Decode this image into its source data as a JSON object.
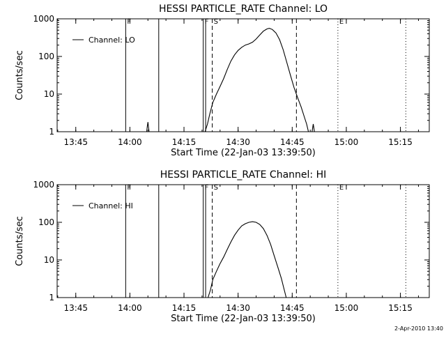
{
  "footer": {
    "date_stamp": "2-Apr-2010 13:40"
  },
  "chart_data": [
    {
      "type": "line",
      "title": "HESSI PARTICLE_RATE Channel: LO",
      "xlabel": "Start Time (22-Jan-03 13:39:50)",
      "ylabel": "Counts/sec",
      "y_scale": "log",
      "ylim": [
        1,
        1000
      ],
      "xlim": [
        "13:39:50",
        "15:23:00"
      ],
      "x_ticks": [
        "13:45",
        "14:00",
        "14:15",
        "14:30",
        "14:45",
        "15:00",
        "15:15"
      ],
      "y_ticks": [
        "1",
        "10",
        "100",
        "1000"
      ],
      "legend": {
        "label": "Channel: LO",
        "position": "top-left"
      },
      "series": [
        {
          "name": "Channel: LO",
          "color": "#000000",
          "segments": [
            [
              [
                "14:04:40",
                1.0
              ],
              [
                "14:04:50",
                1.4
              ],
              [
                "14:05:00",
                1.8
              ],
              [
                "14:05:10",
                1.3
              ],
              [
                "14:05:20",
                1.0
              ]
            ],
            [
              [
                "14:20:50",
                1.0
              ],
              [
                "14:21:30",
                1.6
              ],
              [
                "14:22:10",
                3.0
              ],
              [
                "14:23:00",
                6.0
              ],
              [
                "14:24:00",
                10.0
              ],
              [
                "14:25:00",
                16.0
              ],
              [
                "14:26:00",
                26.0
              ],
              [
                "14:27:00",
                45.0
              ],
              [
                "14:28:00",
                75.0
              ],
              [
                "14:29:00",
                110.0
              ],
              [
                "14:30:00",
                145.0
              ],
              [
                "14:31:00",
                175.0
              ],
              [
                "14:32:00",
                200.0
              ],
              [
                "14:33:00",
                215.0
              ],
              [
                "14:34:00",
                240.0
              ],
              [
                "14:35:00",
                290.0
              ],
              [
                "14:36:00",
                370.0
              ],
              [
                "14:37:00",
                470.0
              ],
              [
                "14:38:00",
                540.0
              ],
              [
                "14:38:40",
                560.0
              ],
              [
                "14:39:30",
                520.0
              ],
              [
                "14:40:30",
                420.0
              ],
              [
                "14:41:30",
                280.0
              ],
              [
                "14:42:30",
                150.0
              ],
              [
                "14:43:30",
                70.0
              ],
              [
                "14:44:30",
                32.0
              ],
              [
                "14:45:30",
                15.0
              ],
              [
                "14:46:30",
                8.0
              ],
              [
                "14:47:30",
                4.5
              ],
              [
                "14:48:20",
                2.5
              ],
              [
                "14:49:00",
                1.6
              ],
              [
                "14:49:30",
                1.0
              ]
            ],
            [
              [
                "14:50:30",
                1.0
              ],
              [
                "14:50:50",
                1.6
              ],
              [
                "14:51:10",
                1.0
              ]
            ]
          ]
        }
      ],
      "markers": [
        {
          "time": "13:58:50",
          "label": "F",
          "style": "solid"
        },
        {
          "time": "14:08:00",
          "label": "",
          "style": "solid"
        },
        {
          "time": "14:20:20",
          "label": "F",
          "style": "solid"
        },
        {
          "time": "14:21:00",
          "label": "",
          "style": "solid"
        },
        {
          "time": "14:22:50",
          "label": "S",
          "style": "dashed"
        },
        {
          "time": "14:46:10",
          "label": "",
          "style": "dashed"
        },
        {
          "time": "14:57:40",
          "label": "E",
          "style": "dotted"
        },
        {
          "time": "15:16:30",
          "label": "",
          "style": "dotted"
        }
      ]
    },
    {
      "type": "line",
      "title": "HESSI PARTICLE_RATE Channel: HI",
      "xlabel": "Start Time (22-Jan-03 13:39:50)",
      "ylabel": "Counts/sec",
      "y_scale": "log",
      "ylim": [
        1,
        1000
      ],
      "xlim": [
        "13:39:50",
        "15:23:00"
      ],
      "x_ticks": [
        "13:45",
        "14:00",
        "14:15",
        "14:30",
        "14:45",
        "15:00",
        "15:15"
      ],
      "y_ticks": [
        "1",
        "10",
        "100",
        "1000"
      ],
      "legend": {
        "label": "Channel: HI",
        "position": "top-left"
      },
      "series": [
        {
          "name": "Channel: HI",
          "color": "#000000",
          "segments": [
            [
              [
                "14:21:40",
                1.0
              ],
              [
                "14:22:20",
                1.6
              ],
              [
                "14:23:00",
                3.0
              ],
              [
                "14:24:00",
                5.0
              ],
              [
                "14:25:00",
                8.0
              ],
              [
                "14:26:00",
                12.0
              ],
              [
                "14:27:00",
                19.0
              ],
              [
                "14:28:00",
                30.0
              ],
              [
                "14:29:00",
                45.0
              ],
              [
                "14:30:00",
                62.0
              ],
              [
                "14:31:00",
                80.0
              ],
              [
                "14:32:00",
                92.0
              ],
              [
                "14:33:00",
                100.0
              ],
              [
                "14:34:00",
                104.0
              ],
              [
                "14:35:00",
                100.0
              ],
              [
                "14:36:00",
                88.0
              ],
              [
                "14:37:00",
                68.0
              ],
              [
                "14:38:00",
                45.0
              ],
              [
                "14:39:00",
                26.0
              ],
              [
                "14:40:00",
                13.0
              ],
              [
                "14:41:00",
                6.5
              ],
              [
                "14:42:00",
                3.2
              ],
              [
                "14:42:40",
                1.8
              ],
              [
                "14:43:20",
                1.0
              ]
            ]
          ]
        }
      ],
      "markers": [
        {
          "time": "13:58:50",
          "label": "F",
          "style": "solid"
        },
        {
          "time": "14:08:00",
          "label": "",
          "style": "solid"
        },
        {
          "time": "14:20:20",
          "label": "F",
          "style": "solid"
        },
        {
          "time": "14:21:00",
          "label": "",
          "style": "solid"
        },
        {
          "time": "14:22:50",
          "label": "S",
          "style": "dashed"
        },
        {
          "time": "14:46:10",
          "label": "",
          "style": "dashed"
        },
        {
          "time": "14:57:40",
          "label": "E",
          "style": "dotted"
        },
        {
          "time": "15:16:30",
          "label": "",
          "style": "dotted"
        }
      ]
    }
  ]
}
